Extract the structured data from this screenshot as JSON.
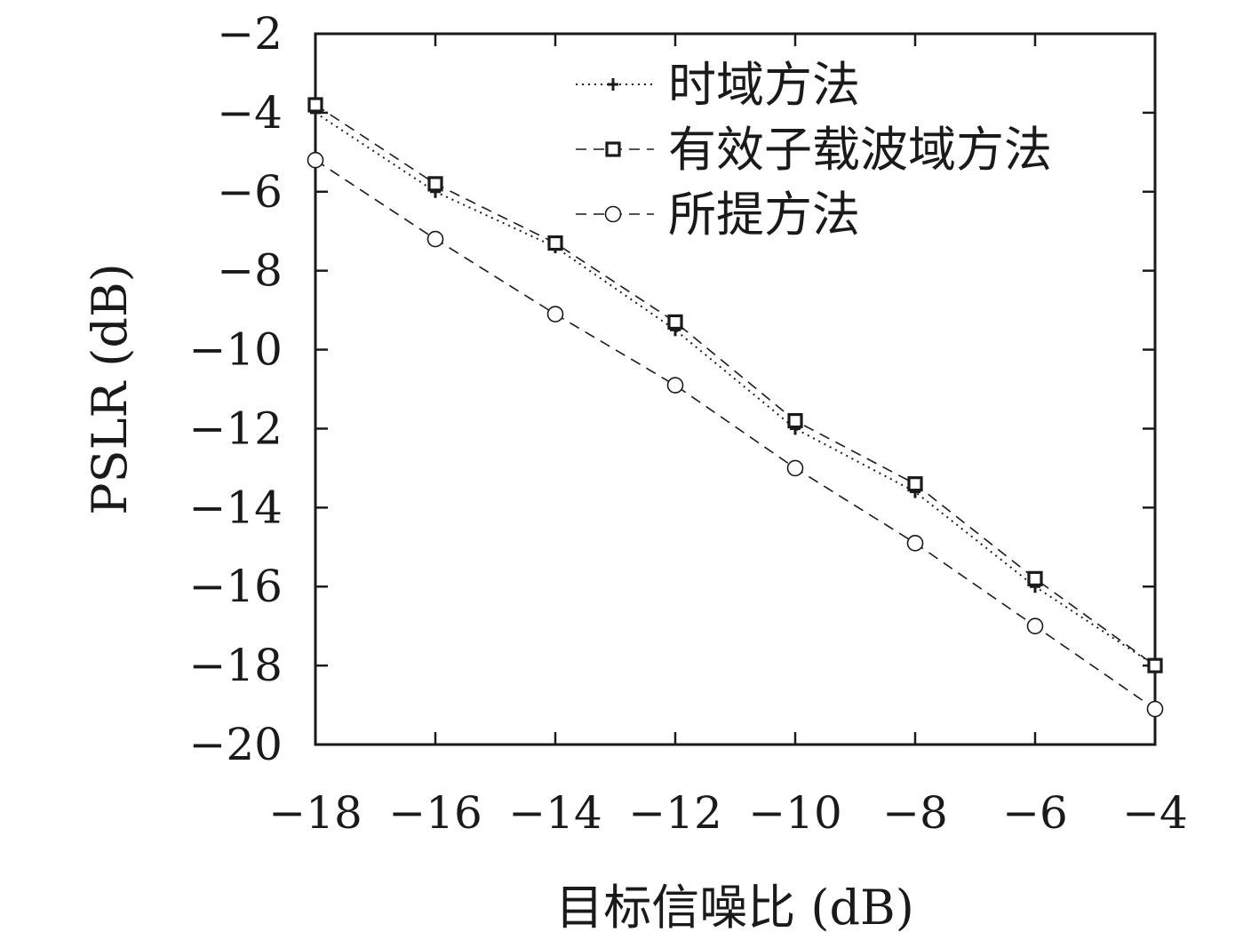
{
  "chart_data": {
    "type": "line",
    "xlabel": "目标信噪比 (dB)",
    "ylabel": "PSLR (dB)",
    "xlim": [
      -18,
      -4
    ],
    "ylim": [
      -20,
      -2
    ],
    "xticks": [
      -18,
      -16,
      -14,
      -12,
      -10,
      -8,
      -6,
      -4
    ],
    "yticks": [
      -20,
      -18,
      -16,
      -14,
      -12,
      -10,
      -8,
      -6,
      -4,
      -2
    ],
    "xtick_labels": [
      "−18",
      "−16",
      "−14",
      "−12",
      "−10",
      "−8",
      "−6",
      "−4"
    ],
    "ytick_labels": [
      "−20",
      "−18",
      "−16",
      "−14",
      "−12",
      "−10",
      "−8",
      "−6",
      "−4",
      "−2"
    ],
    "grid": false,
    "legend_position": "top-right",
    "x": [
      -18,
      -16,
      -14,
      -12,
      -10,
      -8,
      -6,
      -4
    ],
    "series": [
      {
        "name": "时域方法",
        "marker": "plus",
        "line_style": "dotted",
        "values": [
          -4.0,
          -6.0,
          -7.4,
          -9.5,
          -12.0,
          -13.6,
          -16.0,
          -18.0
        ]
      },
      {
        "name": "有效子载波域方法",
        "marker": "square",
        "line_style": "dashed",
        "values": [
          -3.8,
          -5.8,
          -7.3,
          -9.3,
          -11.8,
          -13.4,
          -15.8,
          -18.0
        ]
      },
      {
        "name": "所提方法",
        "marker": "circle",
        "line_style": "dashed",
        "values": [
          -5.2,
          -7.2,
          -9.1,
          -10.9,
          -13.0,
          -14.9,
          -17.0,
          -19.1
        ]
      }
    ],
    "colors": {
      "axis": "#1a1a1a",
      "series": "#1a1a1a",
      "background": "#ffffff"
    }
  }
}
